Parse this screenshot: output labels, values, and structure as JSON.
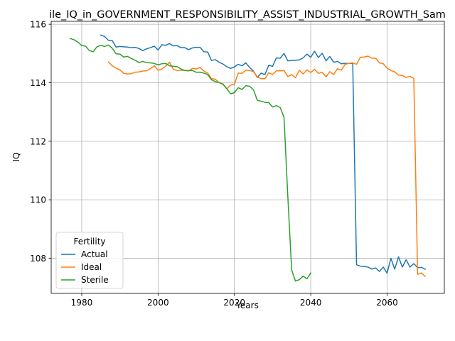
{
  "chart_data": {
    "type": "line",
    "title": "ile_IQ_in_GOVERNMENT_RESPONSIBILITY_ASSIST_INDUSTRIAL_GROWTH_Sam",
    "xlabel": "Years",
    "ylabel": "IQ",
    "xlim": [
      1972,
      2075
    ],
    "ylim": [
      106.8,
      116.1
    ],
    "xticks": [
      "1980",
      "2000",
      "2020",
      "2040",
      "2060"
    ],
    "yticks": [
      "108",
      "110",
      "112",
      "114",
      "116"
    ],
    "grid": true,
    "legend": {
      "title": "Fertility",
      "placement": "lower-left"
    },
    "series": [
      {
        "name": "Actual",
        "color": "#1f77b4",
        "x": [
          1985,
          1986,
          1987,
          1988,
          1989,
          1990,
          1991,
          1992,
          1993,
          1994,
          1995,
          1996,
          1997,
          1998,
          1999,
          2000,
          2001,
          2002,
          2003,
          2004,
          2005,
          2006,
          2007,
          2008,
          2009,
          2010,
          2011,
          2012,
          2013,
          2014,
          2015,
          2016,
          2017,
          2018,
          2019,
          2020,
          2021,
          2022,
          2023,
          2024,
          2025,
          2026,
          2027,
          2028,
          2029,
          2030,
          2031,
          2032,
          2033,
          2034,
          2035,
          2036,
          2037,
          2038,
          2039,
          2040,
          2041,
          2042,
          2043,
          2044,
          2045,
          2046,
          2047,
          2048,
          2049,
          2050,
          2051,
          2052,
          2053,
          2054,
          2055,
          2056,
          2057,
          2058,
          2059,
          2060,
          2061,
          2062,
          2063,
          2064,
          2065,
          2066,
          2067,
          2068,
          2069,
          2070
        ],
        "values": [
          115.63,
          115.58,
          115.45,
          115.44,
          115.22,
          115.24,
          115.23,
          115.22,
          115.2,
          115.21,
          115.17,
          115.1,
          115.16,
          115.2,
          115.25,
          115.12,
          115.3,
          115.28,
          115.34,
          115.26,
          115.27,
          115.2,
          115.2,
          115.13,
          115.19,
          115.21,
          115.21,
          115.06,
          115.05,
          114.76,
          114.79,
          114.7,
          114.64,
          114.55,
          114.49,
          114.54,
          114.63,
          114.58,
          114.68,
          114.52,
          114.4,
          114.18,
          114.33,
          114.28,
          114.6,
          114.56,
          114.85,
          114.84,
          115.0,
          114.75,
          114.76,
          114.77,
          114.78,
          114.85,
          114.98,
          114.87,
          115.08,
          114.86,
          115.01,
          114.75,
          114.9,
          114.7,
          114.73,
          114.65,
          114.66,
          114.66,
          114.66,
          107.78,
          107.73,
          107.72,
          107.7,
          107.63,
          107.67,
          107.55,
          107.7,
          107.49,
          108.0,
          107.63,
          108.05,
          107.7,
          107.95,
          107.7,
          107.82,
          107.68,
          107.69,
          107.63
        ]
      },
      {
        "name": "Ideal",
        "color": "#ff7f0e",
        "x": [
          1987,
          1988,
          1989,
          1990,
          1991,
          1992,
          1993,
          1994,
          1995,
          1996,
          1997,
          1998,
          1999,
          2000,
          2001,
          2002,
          2003,
          2004,
          2005,
          2006,
          2007,
          2008,
          2009,
          2010,
          2011,
          2012,
          2013,
          2014,
          2015,
          2016,
          2017,
          2018,
          2019,
          2020,
          2021,
          2022,
          2023,
          2024,
          2025,
          2026,
          2027,
          2028,
          2029,
          2030,
          2031,
          2032,
          2033,
          2034,
          2035,
          2036,
          2037,
          2038,
          2039,
          2040,
          2041,
          2042,
          2043,
          2044,
          2045,
          2046,
          2047,
          2048,
          2049,
          2050,
          2051,
          2052,
          2053,
          2054,
          2055,
          2056,
          2057,
          2058,
          2059,
          2060,
          2061,
          2062,
          2063,
          2064,
          2065,
          2066,
          2067,
          2068,
          2069,
          2070
        ],
        "values": [
          114.71,
          114.58,
          114.5,
          114.44,
          114.32,
          114.3,
          114.31,
          114.36,
          114.37,
          114.4,
          114.41,
          114.48,
          114.58,
          114.43,
          114.47,
          114.57,
          114.7,
          114.46,
          114.42,
          114.43,
          114.42,
          114.4,
          114.49,
          114.47,
          114.52,
          114.4,
          114.33,
          114.14,
          114.12,
          114.0,
          113.96,
          113.79,
          113.92,
          113.95,
          114.33,
          114.32,
          114.43,
          114.42,
          114.38,
          114.2,
          114.14,
          114.14,
          114.34,
          114.28,
          114.41,
          114.41,
          114.42,
          114.21,
          114.28,
          114.17,
          114.43,
          114.3,
          114.44,
          114.35,
          114.46,
          114.32,
          114.36,
          114.2,
          114.38,
          114.28,
          114.48,
          114.43,
          114.63,
          114.66,
          114.68,
          114.63,
          114.87,
          114.88,
          114.91,
          114.84,
          114.84,
          114.68,
          114.65,
          114.5,
          114.42,
          114.37,
          114.26,
          114.25,
          114.18,
          114.22,
          114.15,
          107.45,
          107.5,
          107.38
        ]
      },
      {
        "name": "Sterile",
        "color": "#2ca02c",
        "x": [
          1977,
          1978,
          1979,
          1980,
          1981,
          1982,
          1983,
          1984,
          1985,
          1986,
          1987,
          1988,
          1989,
          1990,
          1991,
          1992,
          1993,
          1994,
          1995,
          1996,
          1997,
          1998,
          1999,
          2000,
          2001,
          2002,
          2003,
          2004,
          2005,
          2006,
          2007,
          2008,
          2009,
          2010,
          2011,
          2012,
          2013,
          2014,
          2015,
          2016,
          2017,
          2018,
          2019,
          2020,
          2021,
          2022,
          2023,
          2024,
          2025,
          2026,
          2027,
          2028,
          2029,
          2030,
          2031,
          2032,
          2033,
          2034,
          2035,
          2036,
          2037,
          2038,
          2039,
          2040
        ],
        "values": [
          115.51,
          115.47,
          115.39,
          115.27,
          115.25,
          115.1,
          115.06,
          115.23,
          115.28,
          115.24,
          115.29,
          115.18,
          114.99,
          114.98,
          114.88,
          114.9,
          114.83,
          114.77,
          114.69,
          114.73,
          114.69,
          114.68,
          114.66,
          114.61,
          114.65,
          114.66,
          114.58,
          114.56,
          114.55,
          114.47,
          114.42,
          114.42,
          114.42,
          114.36,
          114.36,
          114.33,
          114.28,
          114.1,
          114.04,
          114.01,
          113.95,
          113.8,
          113.62,
          113.66,
          113.83,
          113.77,
          113.9,
          113.88,
          113.76,
          113.4,
          113.37,
          113.33,
          113.32,
          113.17,
          113.22,
          113.15,
          112.82,
          110.1,
          107.6,
          107.22,
          107.27,
          107.39,
          107.3,
          107.5
        ]
      }
    ]
  }
}
